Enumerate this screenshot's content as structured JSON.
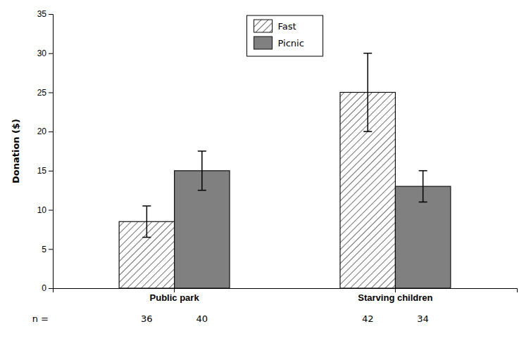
{
  "chart_data": {
    "type": "bar",
    "categories": [
      "Public park",
      "Starving children"
    ],
    "series": [
      {
        "name": "Fast",
        "color": "white",
        "values": [
          8.5,
          25.0
        ],
        "errors": [
          2.0,
          5.0
        ],
        "n": [
          36,
          42
        ]
      },
      {
        "name": "Picnic",
        "color": "#808080",
        "values": [
          15.0,
          13.0
        ],
        "errors": [
          2.5,
          2.0
        ],
        "n": [
          40,
          34
        ]
      }
    ],
    "y_label": "Donation ($)",
    "n_label": "n =",
    "ylim": [
      0,
      35
    ],
    "yticks": [
      0,
      5,
      10,
      15,
      20,
      25,
      30,
      35
    ],
    "grid": false,
    "legend": "upper center"
  }
}
